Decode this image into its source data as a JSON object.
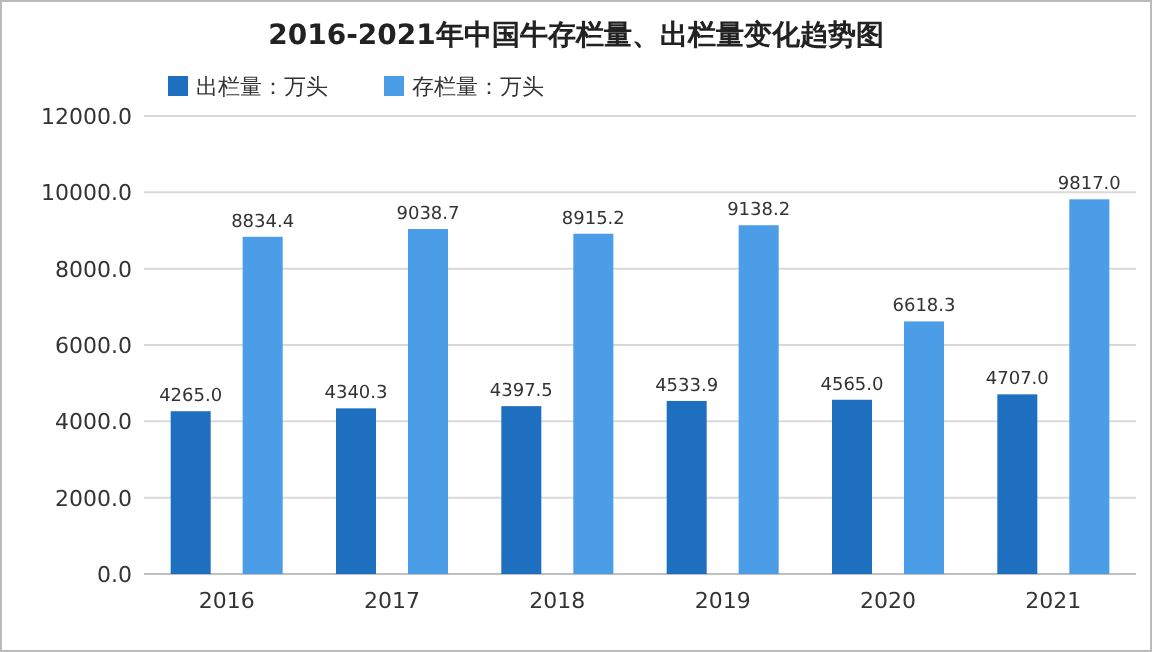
{
  "chart_data": {
    "type": "bar",
    "title": "2016-2021年中国牛存栏量、出栏量变化趋势图",
    "categories": [
      "2016",
      "2017",
      "2018",
      "2019",
      "2020",
      "2021"
    ],
    "series": [
      {
        "name": "出栏量：万头",
        "color": "#1f6fc0",
        "values": [
          4265.0,
          4340.3,
          4397.5,
          4533.9,
          4565.0,
          4707.0
        ],
        "value_labels": [
          "4265.0",
          "4340.3",
          "4397.5",
          "4533.9",
          "4565.0",
          "4707.0"
        ]
      },
      {
        "name": "存栏量：万头",
        "color": "#4a9de6",
        "values": [
          8834.4,
          9038.7,
          8915.2,
          9138.2,
          6618.3,
          9817.0
        ],
        "value_labels": [
          "8834.4",
          "9038.7",
          "8915.2",
          "9138.2",
          "6618.3",
          "9817.0"
        ]
      }
    ],
    "ylim": [
      0,
      12000
    ],
    "yticks": [
      {
        "value": 0,
        "label": "0.0"
      },
      {
        "value": 2000,
        "label": "2000.0"
      },
      {
        "value": 4000,
        "label": "4000.0"
      },
      {
        "value": 6000,
        "label": "6000.0"
      },
      {
        "value": 8000,
        "label": "8000.0"
      },
      {
        "value": 10000,
        "label": "10000.0"
      },
      {
        "value": 12000,
        "label": "12000.0"
      }
    ],
    "grid": "y",
    "legend": "top left"
  }
}
